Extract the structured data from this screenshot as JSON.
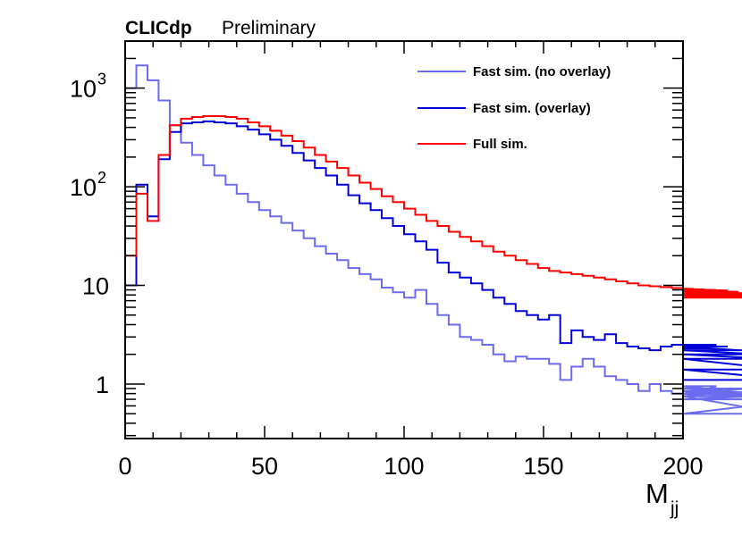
{
  "chart_data": {
    "type": "line",
    "style": "step-histogram",
    "title": "CLICdp Preliminary",
    "brand": "CLICdp",
    "status": "Preliminary",
    "xlabel_main": "M",
    "xlabel_sub": "jj",
    "xlim": [
      0,
      200
    ],
    "ylim": [
      0.28,
      3000
    ],
    "yscale": "log",
    "legend_position": "top-right",
    "x_ticks": [
      {
        "value": 0,
        "label": "0"
      },
      {
        "value": 50,
        "label": "50"
      },
      {
        "value": 100,
        "label": "100"
      },
      {
        "value": 150,
        "label": "150"
      },
      {
        "value": 200,
        "label": "200"
      }
    ],
    "y_ticks": [
      {
        "value": 1,
        "label": "1"
      },
      {
        "value": 10,
        "label": "10"
      },
      {
        "value": 100,
        "label": "10",
        "exp": "2"
      },
      {
        "value": 1000,
        "label": "10",
        "exp": "3"
      }
    ],
    "bin_width": 4,
    "series": [
      {
        "name": "Fast sim. (no overlay)",
        "color": "#6b6bf0",
        "values": [
          1000,
          1700,
          1200,
          750,
          420,
          280,
          210,
          165,
          130,
          105,
          85,
          70,
          58,
          50,
          43,
          36,
          30,
          25,
          21,
          18,
          15,
          13,
          11.5,
          9.5,
          8.5,
          7.5,
          9,
          6.5,
          5,
          4,
          3,
          2.8,
          2.5,
          2,
          1.7,
          1.9,
          1.8,
          1.8,
          1.6,
          1.1,
          1.5,
          1.8,
          1.5,
          1.2,
          1.1,
          1.0,
          0.85,
          1.0,
          0.85,
          0.8,
          0.85,
          0.8,
          0.75,
          0.95,
          0.85,
          0.8,
          0.9,
          0.8,
          0.75,
          0.5,
          0.5,
          0.7,
          0.8
        ]
      },
      {
        "name": "Fast sim. (overlay)",
        "color": "#0000d8",
        "values": [
          10,
          105,
          50,
          190,
          360,
          440,
          450,
          460,
          450,
          440,
          410,
          380,
          340,
          300,
          260,
          220,
          185,
          155,
          130,
          105,
          82,
          68,
          58,
          48,
          40,
          33,
          28,
          23,
          17,
          13.5,
          12,
          10.5,
          9,
          7.5,
          6.5,
          5.5,
          5,
          4.5,
          5,
          2.6,
          3.5,
          3,
          2.8,
          3.2,
          2.6,
          2.4,
          2.3,
          2.2,
          2.4,
          2.5,
          2.3,
          2.4,
          2.3,
          2.5,
          2.4,
          2.2,
          2.2,
          2.0,
          1.8,
          1.4,
          1.1
        ]
      },
      {
        "name": "Full sim.",
        "color": "#ff0000",
        "values": [
          20,
          85,
          45,
          210,
          420,
          490,
          510,
          520,
          520,
          510,
          490,
          450,
          410,
          370,
          330,
          290,
          250,
          210,
          180,
          155,
          130,
          110,
          95,
          80,
          70,
          60,
          52,
          45,
          40,
          35,
          31,
          28,
          25,
          22,
          20,
          18,
          16.5,
          15,
          14,
          13.5,
          13,
          12.5,
          12,
          11.5,
          11,
          10.5,
          10,
          9.8,
          9.6,
          9.4,
          9.3,
          9.2,
          9.1,
          9.0,
          8.9,
          8.6,
          8.3,
          8.0,
          7.8,
          7.5
        ]
      }
    ]
  }
}
